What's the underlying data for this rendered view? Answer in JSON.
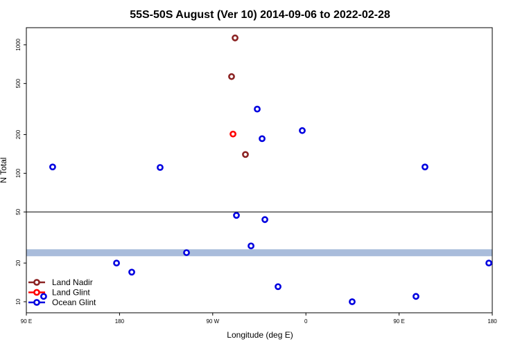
{
  "chart_data": {
    "type": "scatter",
    "title": "55S-50S August (Ver 10)   2014-09-06 to 2022-02-28",
    "x_label": "Longitude (deg E)",
    "y_label": "N Total",
    "xlim": [
      90,
      540
    ],
    "xticks": [
      {
        "value": 90,
        "label": "90 E"
      },
      {
        "value": 180,
        "label": "180"
      },
      {
        "value": 270,
        "label": "90 W"
      },
      {
        "value": 360,
        "label": "0"
      },
      {
        "value": 450,
        "label": "90 E"
      },
      {
        "value": 540,
        "label": "180"
      }
    ],
    "ylim": [
      8.2,
      1360
    ],
    "y_scale": "log",
    "yticks": [
      10,
      20,
      50,
      100,
      200,
      500,
      1000
    ],
    "hline": 50,
    "band": {
      "range": [
        22.6,
        25.6
      ],
      "color": "#a9bcdb"
    },
    "legend": "bottom-left",
    "series": [
      {
        "name": "Land Nadir",
        "color": "#8b2323",
        "x": [
          291.6,
          288.2,
          301.6
        ],
        "values": [
          1132,
          566,
          140
        ]
      },
      {
        "name": "Land Glint",
        "color": "#ff0000",
        "x": [
          289.6
        ],
        "values": [
          202
        ]
      },
      {
        "name": "Ocean Glint",
        "color": "#0000e0",
        "x": [
          115.4,
          219.2,
          313.0,
          317.7,
          356.5,
          475.0,
          292.9,
          320.4,
          307.0,
          244.7,
          177.1,
          191.8,
          536.7,
          106.7,
          333.1,
          404.7,
          466.3
        ],
        "values": [
          112,
          111,
          316,
          186,
          215,
          112,
          47,
          43.6,
          27.2,
          24.1,
          20,
          17,
          20,
          11.0,
          13.1,
          10,
          11
        ]
      }
    ]
  }
}
